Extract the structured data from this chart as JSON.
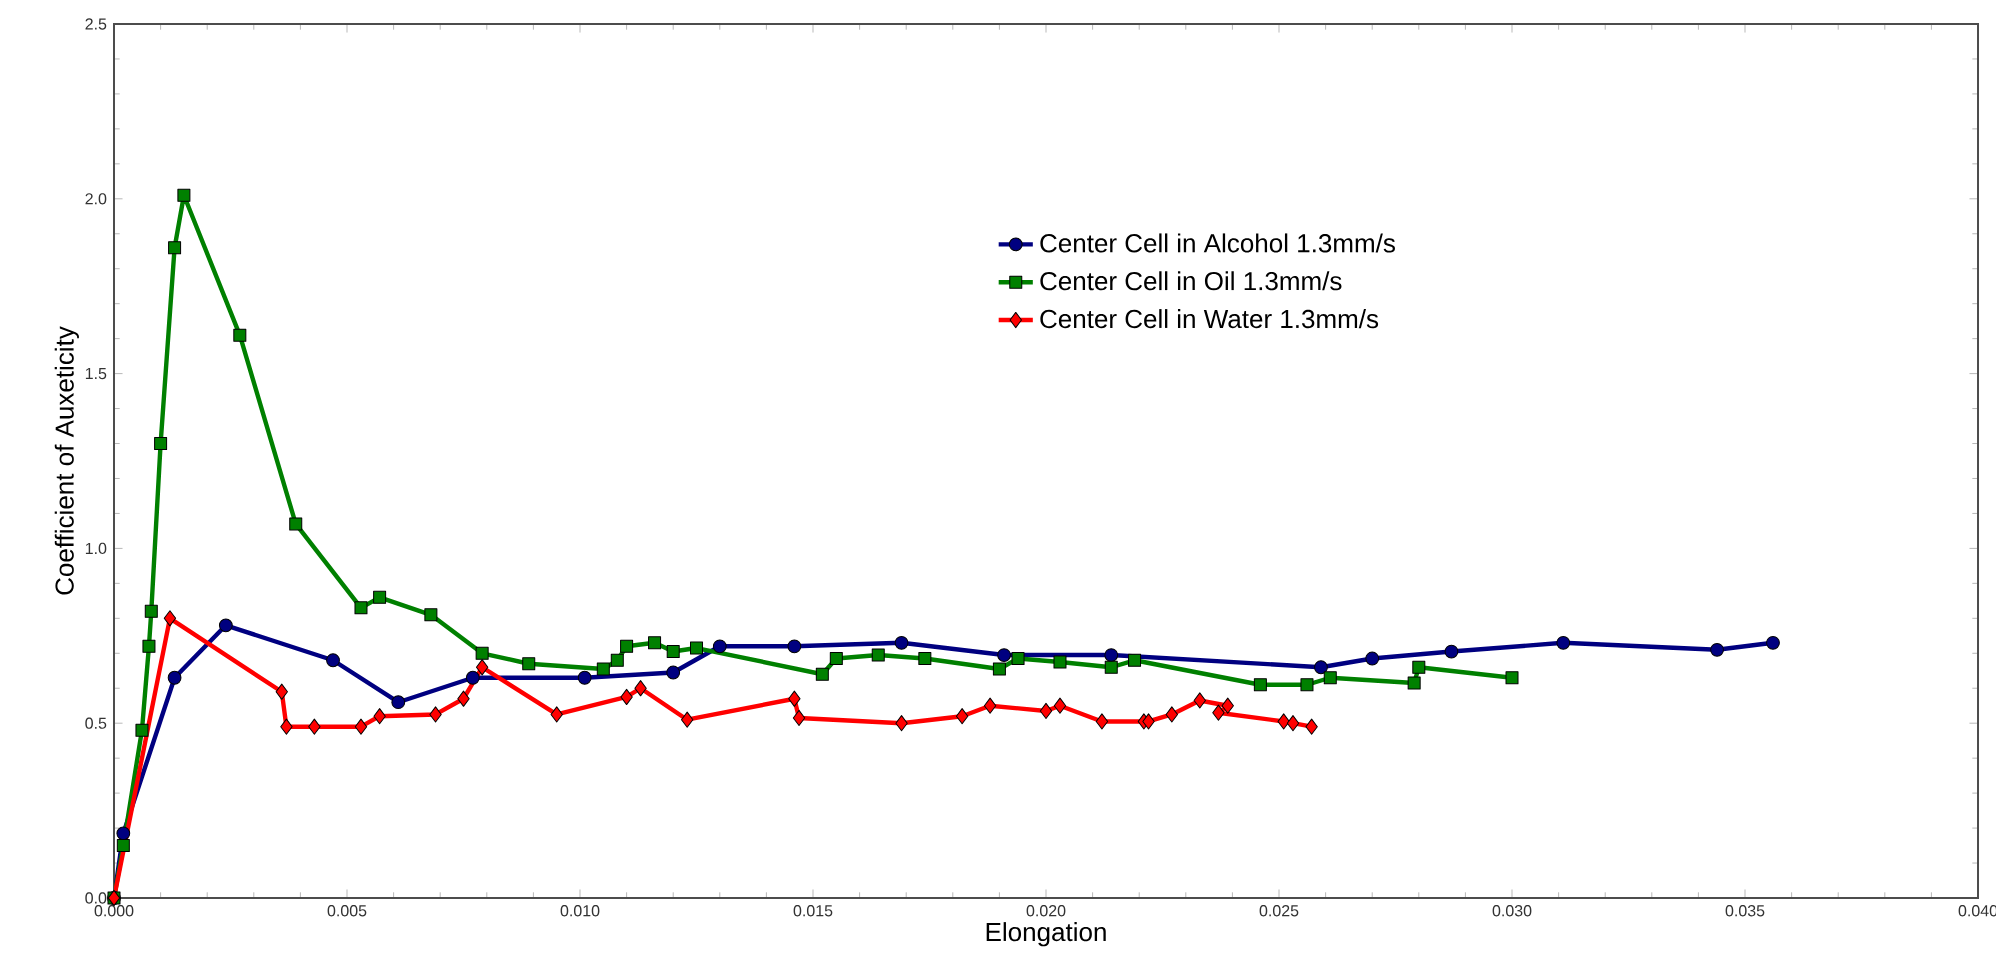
{
  "chart_data": {
    "type": "line",
    "xlabel": "Elongation",
    "ylabel": "Coefficient of Auxeticity",
    "xlim": [
      0,
      0.04
    ],
    "ylim": [
      0,
      2.5
    ],
    "xticks": [
      {
        "value": 0,
        "label": "0.000"
      },
      {
        "value": 0.005,
        "label": "0.005"
      },
      {
        "value": 0.01,
        "label": "0.010"
      },
      {
        "value": 0.015,
        "label": "0.015"
      },
      {
        "value": 0.02,
        "label": "0.020"
      },
      {
        "value": 0.025,
        "label": "0.025"
      },
      {
        "value": 0.03,
        "label": "0.030"
      },
      {
        "value": 0.035,
        "label": "0.035"
      },
      {
        "value": 0.04,
        "label": "0.040"
      }
    ],
    "yticks": [
      {
        "value": 0,
        "label": "0.0"
      },
      {
        "value": 0.5,
        "label": "0.5"
      },
      {
        "value": 1,
        "label": "1.0"
      },
      {
        "value": 1.5,
        "label": "1.5"
      },
      {
        "value": 2,
        "label": "2.0"
      },
      {
        "value": 2.5,
        "label": "2.5"
      }
    ],
    "grid": false,
    "legend": "top",
    "line_style": "solid",
    "series": [
      {
        "name": "Center Cell in Alcohol 1.3mm/s",
        "color": "#000080",
        "marker": "circle",
        "x": [
          0,
          0.0002,
          0.0013,
          0.0024,
          0.0047,
          0.0061,
          0.0077,
          0.0101,
          0.012,
          0.013,
          0.0146,
          0.0169,
          0.0191,
          0.0214,
          0.0259,
          0.027,
          0.0287,
          0.0311,
          0.0344,
          0.0356
        ],
        "values": [
          0,
          0.185,
          0.63,
          0.78,
          0.68,
          0.56,
          0.63,
          0.63,
          0.645,
          0.72,
          0.72,
          0.73,
          0.695,
          0.695,
          0.66,
          0.685,
          0.705,
          0.73,
          0.71,
          0.73
        ]
      },
      {
        "name": "Center Cell in Oil 1.3mm/s",
        "color": "#008000",
        "marker": "square",
        "x": [
          0,
          0.0002,
          0.0006,
          0.00075,
          0.0008,
          0.001,
          0.0013,
          0.0015,
          0.0027,
          0.0039,
          0.0053,
          0.0057,
          0.0068,
          0.0079,
          0.0089,
          0.0105,
          0.0108,
          0.011,
          0.0116,
          0.012,
          0.0125,
          0.0152,
          0.0155,
          0.0164,
          0.0174,
          0.019,
          0.0194,
          0.0203,
          0.0214,
          0.0219,
          0.0246,
          0.0256,
          0.0261,
          0.0279,
          0.028,
          0.03
        ],
        "values": [
          0,
          0.15,
          0.48,
          0.72,
          0.82,
          1.3,
          1.86,
          2.01,
          1.61,
          1.07,
          0.83,
          0.86,
          0.81,
          0.7,
          0.67,
          0.655,
          0.68,
          0.72,
          0.73,
          0.705,
          0.715,
          0.64,
          0.685,
          0.695,
          0.685,
          0.655,
          0.685,
          0.675,
          0.66,
          0.68,
          0.61,
          0.61,
          0.63,
          0.615,
          0.66,
          0.63
        ]
      },
      {
        "name": "Center Cell in Water 1.3mm/s",
        "color": "#ff0000",
        "marker": "diamond",
        "x": [
          0,
          0.0012,
          0.0036,
          0.0037,
          0.0043,
          0.0053,
          0.0057,
          0.0069,
          0.0075,
          0.0079,
          0.0095,
          0.011,
          0.0113,
          0.0123,
          0.0146,
          0.0147,
          0.0169,
          0.0182,
          0.0188,
          0.02,
          0.0203,
          0.0212,
          0.0221,
          0.0222,
          0.0227,
          0.0233,
          0.0239,
          0.0237,
          0.0251,
          0.0253,
          0.0257
        ],
        "values": [
          0,
          0.8,
          0.59,
          0.49,
          0.49,
          0.49,
          0.52,
          0.525,
          0.57,
          0.66,
          0.525,
          0.575,
          0.6,
          0.51,
          0.57,
          0.515,
          0.5,
          0.52,
          0.55,
          0.535,
          0.55,
          0.505,
          0.505,
          0.505,
          0.525,
          0.565,
          0.55,
          0.53,
          0.505,
          0.5,
          0.49
        ]
      }
    ]
  }
}
